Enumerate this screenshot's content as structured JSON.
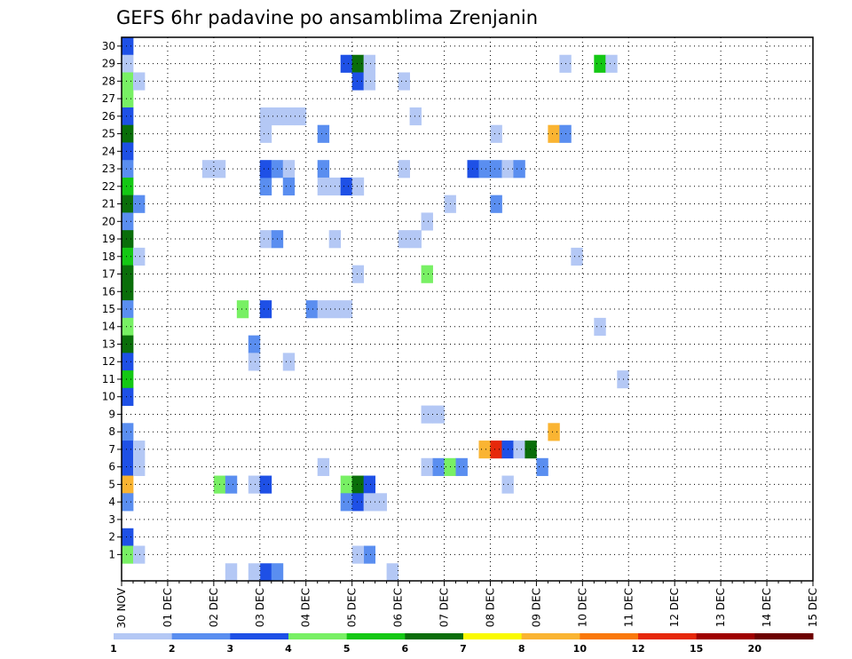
{
  "chart_data": {
    "type": "heatmap",
    "title": "GEFS 6hr padavine po ansamblima Zrenjanin",
    "xlabel": "",
    "ylabel": "",
    "x_tick_labels": [
      "30 NOV",
      "01 DEC",
      "02 DEC",
      "03 DEC",
      "04 DEC",
      "05 DEC",
      "06 DEC",
      "07 DEC",
      "08 DEC",
      "09 DEC",
      "10 DEC",
      "11 DEC",
      "12 DEC",
      "13 DEC",
      "14 DEC",
      "15 DEC"
    ],
    "y_tick_labels": [
      "1",
      "2",
      "3",
      "4",
      "5",
      "6",
      "7",
      "8",
      "9",
      "10",
      "11",
      "12",
      "13",
      "14",
      "15",
      "16",
      "17",
      "18",
      "19",
      "20",
      "21",
      "22",
      "23",
      "24",
      "25",
      "26",
      "27",
      "28",
      "29",
      "30"
    ],
    "xlim": [
      0,
      60
    ],
    "ylim": [
      0,
      30
    ],
    "grid": true,
    "colorbar": {
      "labels": [
        "1",
        "2",
        "3",
        "4",
        "5",
        "6",
        "7",
        "8",
        "10",
        "12",
        "15",
        "20"
      ],
      "colors": [
        "#b4c8f5",
        "#5a8ef0",
        "#1e50e6",
        "#78f064",
        "#14c814",
        "#0a6e0a",
        "#fafa00",
        "#fab432",
        "#fa780a",
        "#e6280a",
        "#a00000",
        "#6e0000"
      ]
    },
    "cells": [
      [
        0,
        30,
        3
      ],
      [
        0,
        29,
        1
      ],
      [
        0,
        28,
        4
      ],
      [
        0,
        27,
        4
      ],
      [
        0,
        26,
        3
      ],
      [
        0,
        25,
        6
      ],
      [
        0,
        24,
        3
      ],
      [
        0,
        23,
        2
      ],
      [
        0,
        22,
        5
      ],
      [
        0,
        21,
        6
      ],
      [
        0,
        20,
        2
      ],
      [
        0,
        19,
        6
      ],
      [
        0,
        18,
        5
      ],
      [
        0,
        17,
        6
      ],
      [
        0,
        16,
        6
      ],
      [
        0,
        15,
        2
      ],
      [
        0,
        14,
        4
      ],
      [
        0,
        13,
        6
      ],
      [
        0,
        12,
        3
      ],
      [
        0,
        11,
        5
      ],
      [
        0,
        10,
        3
      ],
      [
        0,
        8,
        2
      ],
      [
        0,
        7,
        3
      ],
      [
        0,
        6,
        3
      ],
      [
        0,
        5,
        8
      ],
      [
        0,
        4,
        2
      ],
      [
        0,
        2,
        3
      ],
      [
        0,
        1,
        4
      ],
      [
        1,
        28,
        1
      ],
      [
        1,
        21,
        2
      ],
      [
        1,
        18,
        1
      ],
      [
        1,
        7,
        1
      ],
      [
        1,
        6,
        1
      ],
      [
        1,
        1,
        1
      ],
      [
        7,
        23,
        1
      ],
      [
        8,
        23,
        1
      ],
      [
        8,
        5,
        4
      ],
      [
        9,
        5,
        2
      ],
      [
        9,
        0,
        1
      ],
      [
        10,
        15,
        4
      ],
      [
        11,
        13,
        2
      ],
      [
        11,
        12,
        1
      ],
      [
        13,
        0,
        1
      ],
      [
        12,
        26,
        1
      ],
      [
        13,
        26,
        1
      ],
      [
        14,
        26,
        1
      ],
      [
        15,
        26,
        1
      ],
      [
        12,
        25,
        1
      ],
      [
        12,
        22,
        2
      ],
      [
        12,
        19,
        1
      ],
      [
        13,
        19,
        2
      ],
      [
        12,
        23,
        3
      ],
      [
        13,
        23,
        2
      ],
      [
        14,
        23,
        1
      ],
      [
        14,
        22,
        2
      ],
      [
        14,
        12,
        1
      ],
      [
        12,
        15,
        3
      ],
      [
        11,
        5,
        1
      ],
      [
        12,
        5,
        3
      ],
      [
        12,
        0,
        3
      ],
      [
        13,
        0,
        2
      ],
      [
        11,
        0,
        1
      ],
      [
        17,
        25,
        2
      ],
      [
        17,
        23,
        2
      ],
      [
        17,
        22,
        1
      ],
      [
        18,
        22,
        1
      ],
      [
        19,
        22,
        3
      ],
      [
        20,
        22,
        2
      ],
      [
        18,
        19,
        1
      ],
      [
        16,
        15,
        2
      ],
      [
        17,
        15,
        1
      ],
      [
        18,
        15,
        1
      ],
      [
        19,
        15,
        1
      ],
      [
        17,
        6,
        1
      ],
      [
        19,
        29,
        3
      ],
      [
        20,
        29,
        6
      ],
      [
        21,
        29,
        1
      ],
      [
        20,
        28,
        3
      ],
      [
        21,
        28,
        1
      ],
      [
        20,
        22,
        1
      ],
      [
        20,
        17,
        1
      ],
      [
        21,
        1,
        2
      ],
      [
        20,
        1,
        1
      ],
      [
        19,
        5,
        4
      ],
      [
        20,
        5,
        6
      ],
      [
        21,
        5,
        3
      ],
      [
        19,
        4,
        2
      ],
      [
        20,
        4,
        3
      ],
      [
        22,
        4,
        1
      ],
      [
        21,
        4,
        1
      ],
      [
        24,
        28,
        1
      ],
      [
        25,
        26,
        1
      ],
      [
        24,
        23,
        1
      ],
      [
        24,
        19,
        1
      ],
      [
        25,
        19,
        1
      ],
      [
        23,
        0,
        1
      ],
      [
        26,
        20,
        1
      ],
      [
        26,
        17,
        4
      ],
      [
        26,
        9,
        1
      ],
      [
        27,
        9,
        1
      ],
      [
        26,
        6,
        1
      ],
      [
        27,
        6,
        2
      ],
      [
        28,
        6,
        4
      ],
      [
        29,
        6,
        2
      ],
      [
        28,
        21,
        1
      ],
      [
        30,
        23,
        3
      ],
      [
        32,
        25,
        1
      ],
      [
        32,
        21,
        2
      ],
      [
        31,
        23,
        2
      ],
      [
        32,
        23,
        2
      ],
      [
        33,
        23,
        1
      ],
      [
        34,
        23,
        2
      ],
      [
        31,
        7,
        8
      ],
      [
        32,
        7,
        10
      ],
      [
        33,
        7,
        3
      ],
      [
        34,
        7,
        1
      ],
      [
        35,
        7,
        6
      ],
      [
        36,
        6,
        2
      ],
      [
        33,
        5,
        1
      ],
      [
        37,
        25,
        8
      ],
      [
        38,
        25,
        2
      ],
      [
        38,
        29,
        1
      ],
      [
        37,
        8,
        8
      ],
      [
        39,
        18,
        1
      ],
      [
        41,
        29,
        5
      ],
      [
        42,
        29,
        1
      ],
      [
        41,
        14,
        1
      ],
      [
        43,
        11,
        1
      ]
    ]
  }
}
